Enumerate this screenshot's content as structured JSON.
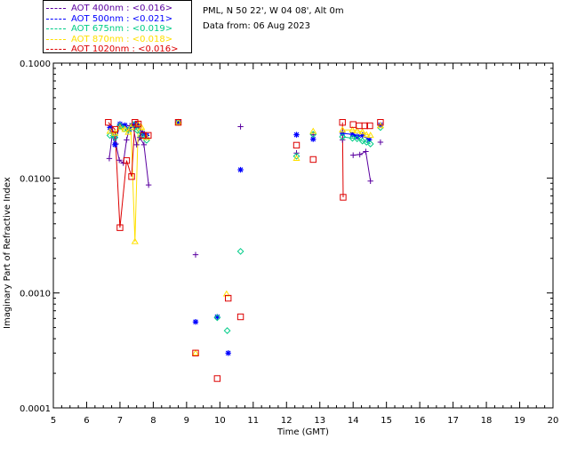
{
  "header": {
    "location": "PML, N 50 22', W 04 08', Alt 0m",
    "date_line": "Data from: 06 Aug 2023"
  },
  "chart_data": {
    "type": "scatter",
    "xlabel": "Time (GMT)",
    "ylabel": "Imaginary Part of Refractive Index",
    "xlim": [
      5,
      20
    ],
    "ylim": [
      0.0001,
      0.1
    ],
    "yscale": "log",
    "xticks": [
      "5",
      "6",
      "7",
      "8",
      "9",
      "10",
      "11",
      "12",
      "13",
      "14",
      "15",
      "16",
      "17",
      "18",
      "19",
      "20"
    ],
    "yticks": [
      {
        "v": 0.0001,
        "label": "0.0001"
      },
      {
        "v": 0.001,
        "label": "0.0010"
      },
      {
        "v": 0.01,
        "label": "0.0100"
      },
      {
        "v": 0.1,
        "label": "0.1000"
      }
    ],
    "legend_position": "top-left",
    "series": [
      {
        "name": "AOT  400nm : <0.016>",
        "color": "#5a00a0",
        "marker": "plus",
        "connected_groups": [
          [
            [
              6.68,
              0.0148
            ],
            [
              6.78,
              0.0255
            ],
            [
              6.88,
              0.0198
            ],
            [
              6.98,
              0.0143
            ],
            [
              7.1,
              0.0135
            ],
            [
              7.2,
              0.0215
            ],
            [
              7.3,
              0.0285
            ],
            [
              7.4,
              0.0275
            ],
            [
              7.5,
              0.0195
            ],
            [
              7.6,
              0.0225
            ],
            [
              7.72,
              0.0195
            ],
            [
              7.86,
              0.0087
            ]
          ],
          [
            [
              14.0,
              0.0158
            ],
            [
              14.2,
              0.016
            ],
            [
              14.38,
              0.017
            ],
            [
              14.52,
              0.0094
            ]
          ]
        ],
        "points": [
          [
            8.75,
            0.0305
          ],
          [
            9.27,
            0.00215
          ],
          [
            10.62,
            0.028
          ],
          [
            12.3,
            0.0165
          ],
          [
            12.8,
            0.0238
          ],
          [
            13.68,
            0.0215
          ],
          [
            14.82,
            0.0205
          ]
        ]
      },
      {
        "name": "AOT  500nm : <0.021>",
        "color": "#0000ff",
        "marker": "asterisk",
        "connected_groups": [
          [
            [
              6.7,
              0.0275
            ],
            [
              6.85,
              0.0195
            ],
            [
              7.0,
              0.0295
            ],
            [
              7.15,
              0.0288
            ],
            [
              7.28,
              0.0265
            ],
            [
              7.45,
              0.0295
            ],
            [
              7.55,
              0.0285
            ],
            [
              7.68,
              0.0245
            ],
            [
              7.8,
              0.0235
            ]
          ],
          [
            [
              13.68,
              0.0245
            ],
            [
              13.98,
              0.024
            ],
            [
              14.12,
              0.023
            ],
            [
              14.28,
              0.0235
            ],
            [
              14.48,
              0.0215
            ]
          ]
        ],
        "points": [
          [
            8.75,
            0.0305
          ],
          [
            9.27,
            0.00056
          ],
          [
            9.92,
            0.00062
          ],
          [
            10.25,
            0.0003
          ],
          [
            10.62,
            0.0118
          ],
          [
            12.3,
            0.0238
          ],
          [
            12.8,
            0.0218
          ],
          [
            14.82,
            0.029
          ]
        ]
      },
      {
        "name": "AOT  675nm : <0.019>",
        "color": "#00cc88",
        "marker": "diamond",
        "connected_groups": [
          [
            [
              6.7,
              0.0235
            ],
            [
              6.85,
              0.0225
            ],
            [
              7.0,
              0.0285
            ],
            [
              7.12,
              0.0268
            ],
            [
              7.25,
              0.0262
            ],
            [
              7.4,
              0.0292
            ],
            [
              7.52,
              0.026
            ],
            [
              7.65,
              0.0232
            ],
            [
              7.8,
              0.0213
            ]
          ],
          [
            [
              13.68,
              0.0228
            ],
            [
              13.98,
              0.0222
            ],
            [
              14.12,
              0.022
            ],
            [
              14.28,
              0.021
            ],
            [
              14.4,
              0.0205
            ],
            [
              14.52,
              0.0198
            ]
          ]
        ],
        "points": [
          [
            8.75,
            0.0305
          ],
          [
            9.92,
            0.00061
          ],
          [
            10.22,
            0.00047
          ],
          [
            10.62,
            0.0023
          ],
          [
            12.3,
            0.0155
          ],
          [
            12.8,
            0.024
          ],
          [
            14.82,
            0.0275
          ]
        ]
      },
      {
        "name": "AOT  870nm : <0.018>",
        "color": "#ffe000",
        "marker": "triangle",
        "connected_groups": [
          [
            [
              6.7,
              0.0255
            ],
            [
              6.85,
              0.0245
            ],
            [
              7.0,
              0.0275
            ],
            [
              7.15,
              0.0265
            ],
            [
              7.25,
              0.025
            ],
            [
              7.33,
              0.0275
            ],
            [
              7.45,
              0.0028
            ],
            [
              7.55,
              0.0295
            ],
            [
              7.65,
              0.0275
            ],
            [
              7.8,
              0.0225
            ]
          ],
          [
            [
              13.68,
              0.0262
            ],
            [
              13.98,
              0.0262
            ],
            [
              14.12,
              0.0258
            ],
            [
              14.28,
              0.0252
            ],
            [
              14.4,
              0.0238
            ],
            [
              14.52,
              0.0235
            ]
          ]
        ],
        "points": [
          [
            8.75,
            0.0305
          ],
          [
            9.27,
            0.0003
          ],
          [
            10.2,
            0.00098
          ],
          [
            12.3,
            0.0148
          ],
          [
            12.8,
            0.0255
          ],
          [
            14.82,
            0.0285
          ]
        ]
      },
      {
        "name": "AOT 1020nm : <0.016>",
        "color": "#dd0000",
        "marker": "square",
        "connected_groups": [
          [
            [
              6.65,
              0.0305
            ],
            [
              6.85,
              0.0265
            ],
            [
              7.0,
              0.0037
            ],
            [
              7.2,
              0.0142
            ],
            [
              7.35,
              0.0103
            ],
            [
              7.45,
              0.0305
            ],
            [
              7.55,
              0.0295
            ],
            [
              7.7,
              0.0235
            ],
            [
              7.85,
              0.0235
            ]
          ],
          [
            [
              13.68,
              0.0305
            ],
            [
              13.7,
              0.0068
            ]
          ]
        ],
        "points": [
          [
            8.75,
            0.0305
          ],
          [
            9.27,
            0.0003
          ],
          [
            9.92,
            0.00018
          ],
          [
            10.25,
            0.0009
          ],
          [
            10.62,
            0.00062
          ],
          [
            12.3,
            0.0193
          ],
          [
            12.8,
            0.0145
          ],
          [
            14.0,
            0.0292
          ],
          [
            14.18,
            0.0285
          ],
          [
            14.35,
            0.0285
          ],
          [
            14.5,
            0.0285
          ],
          [
            14.82,
            0.0305
          ]
        ]
      }
    ]
  }
}
